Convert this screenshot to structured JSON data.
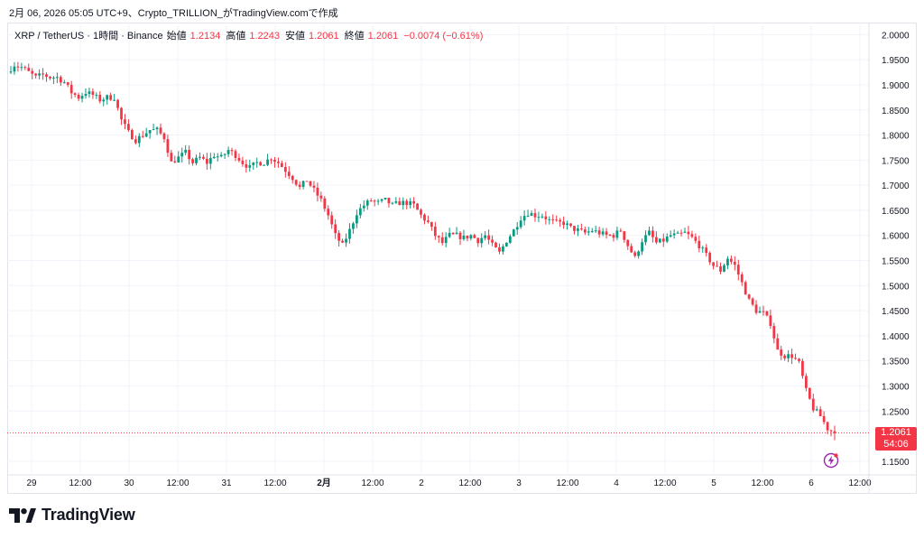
{
  "caption": "2月 06, 2026 05:05 UTC+9、Crypto_TRILLION_がTradingView.comで作成",
  "legend": {
    "symbol": "XRP / TetherUS · 1時間 · Binance",
    "open_label": "始値",
    "open": "1.2134",
    "high_label": "高値",
    "high": "1.2243",
    "low_label": "安値",
    "low": "1.2061",
    "close_label": "終値",
    "close": "1.2061",
    "change": "−0.0074 (−0.61%)"
  },
  "price_tag": {
    "price": "1.2061",
    "countdown": "54:06"
  },
  "brand": {
    "name": "TradingView"
  },
  "colors": {
    "up": "#089981",
    "down": "#f23645",
    "grid": "#f0f3fa",
    "text": "#131722"
  },
  "icons": {
    "alert": "lightning-icon",
    "logo": "tradingview-logo-icon"
  },
  "chart_data": {
    "type": "candlestick",
    "interval": "1h",
    "y_axis": {
      "range": [
        1.13,
        2.01
      ],
      "ticks": [
        1.15,
        1.2,
        1.25,
        1.3,
        1.35,
        1.4,
        1.45,
        1.5,
        1.55,
        1.6,
        1.65,
        1.7,
        1.75,
        1.8,
        1.85,
        1.9,
        1.95,
        2.0
      ],
      "decimals": 4,
      "side": "right"
    },
    "x_axis": {
      "labels": [
        "29",
        "12:00",
        "30",
        "12:00",
        "31",
        "12:00",
        "2月",
        "12:00",
        "2",
        "12:00",
        "3",
        "12:00",
        "4",
        "12:00",
        "5",
        "12:00",
        "6",
        "12:00"
      ],
      "bold": [
        "2月"
      ]
    },
    "last_price": 1.2061,
    "grid": true,
    "path": [
      1.925,
      1.94,
      1.935,
      1.925,
      1.915,
      1.92,
      1.915,
      1.915,
      1.905,
      1.885,
      1.875,
      1.885,
      1.88,
      1.87,
      1.875,
      1.875,
      1.83,
      1.805,
      1.79,
      1.8,
      1.81,
      1.81,
      1.795,
      1.745,
      1.755,
      1.765,
      1.745,
      1.755,
      1.745,
      1.76,
      1.755,
      1.77,
      1.76,
      1.745,
      1.735,
      1.745,
      1.745,
      1.755,
      1.745,
      1.73,
      1.715,
      1.695,
      1.71,
      1.69,
      1.67,
      1.64,
      1.6,
      1.58,
      1.61,
      1.645,
      1.66,
      1.67,
      1.665,
      1.67,
      1.66,
      1.665,
      1.665,
      1.66,
      1.64,
      1.625,
      1.6,
      1.585,
      1.6,
      1.6,
      1.595,
      1.6,
      1.59,
      1.6,
      1.58,
      1.565,
      1.59,
      1.61,
      1.635,
      1.645,
      1.64,
      1.64,
      1.63,
      1.625,
      1.625,
      1.615,
      1.61,
      1.605,
      1.61,
      1.605,
      1.6,
      1.6,
      1.61,
      1.58,
      1.555,
      1.59,
      1.605,
      1.585,
      1.59,
      1.6,
      1.6,
      1.605,
      1.595,
      1.58,
      1.56,
      1.54,
      1.53,
      1.555,
      1.54,
      1.505,
      1.47,
      1.45,
      1.445,
      1.425,
      1.37,
      1.36,
      1.36,
      1.345,
      1.29,
      1.255,
      1.24,
      1.215,
      1.2061
    ]
  }
}
